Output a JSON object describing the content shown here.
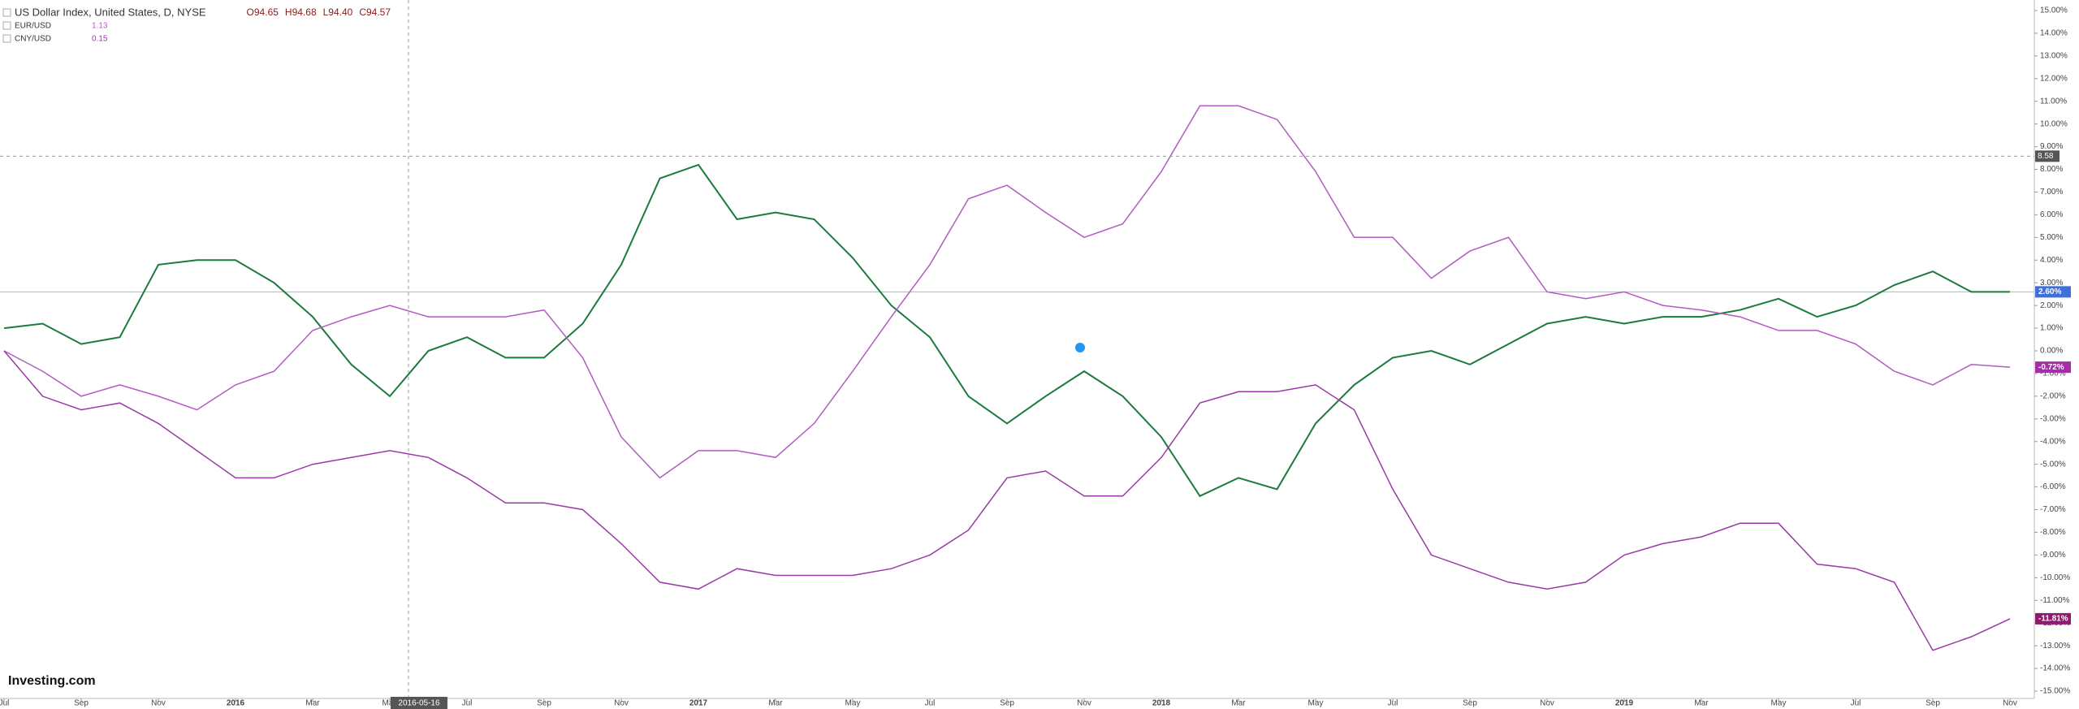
{
  "chart_data": {
    "type": "line",
    "x": [
      "2015-07",
      "2015-08",
      "2015-09",
      "2015-10",
      "2015-11",
      "2015-12",
      "2016-01",
      "2016-02",
      "2016-03",
      "2016-04",
      "2016-05",
      "2016-06",
      "2016-07",
      "2016-08",
      "2016-09",
      "2016-10",
      "2016-11",
      "2016-12",
      "2017-01",
      "2017-02",
      "2017-03",
      "2017-04",
      "2017-05",
      "2017-06",
      "2017-07",
      "2017-08",
      "2017-09",
      "2017-10",
      "2017-11",
      "2017-12",
      "2018-01",
      "2018-02",
      "2018-03",
      "2018-04",
      "2018-05",
      "2018-06",
      "2018-07",
      "2018-08",
      "2018-09",
      "2018-10",
      "2018-11",
      "2018-12",
      "2019-01",
      "2019-02",
      "2019-03",
      "2019-04",
      "2019-05",
      "2019-06",
      "2019-07",
      "2019-08",
      "2019-09",
      "2019-10",
      "2019-11"
    ],
    "xticks": [
      {
        "value": "2015-07",
        "label": "Jul"
      },
      {
        "value": "2015-09",
        "label": "Sep"
      },
      {
        "value": "2015-11",
        "label": "Nov"
      },
      {
        "value": "2016-01",
        "label": "2016"
      },
      {
        "value": "2016-03",
        "label": "Mar"
      },
      {
        "value": "2016-05",
        "label": "May"
      },
      {
        "value": "2016-07",
        "label": "Jul"
      },
      {
        "value": "2016-09",
        "label": "Sep"
      },
      {
        "value": "2016-11",
        "label": "Nov"
      },
      {
        "value": "2017-01",
        "label": "2017"
      },
      {
        "value": "2017-03",
        "label": "Mar"
      },
      {
        "value": "2017-05",
        "label": "May"
      },
      {
        "value": "2017-07",
        "label": "Jul"
      },
      {
        "value": "2017-09",
        "label": "Sep"
      },
      {
        "value": "2017-11",
        "label": "Nov"
      },
      {
        "value": "2018-01",
        "label": "2018"
      },
      {
        "value": "2018-03",
        "label": "Mar"
      },
      {
        "value": "2018-05",
        "label": "May"
      },
      {
        "value": "2018-07",
        "label": "Jul"
      },
      {
        "value": "2018-09",
        "label": "Sep"
      },
      {
        "value": "2018-11",
        "label": "Nov"
      },
      {
        "value": "2019-01",
        "label": "2019"
      },
      {
        "value": "2019-03",
        "label": "Mar"
      },
      {
        "value": "2019-05",
        "label": "May"
      },
      {
        "value": "2019-07",
        "label": "Jul"
      },
      {
        "value": "2019-09",
        "label": "Sep"
      },
      {
        "value": "2019-11",
        "label": "Nov"
      }
    ],
    "ylim": [
      -15,
      15
    ],
    "yticks": [
      {
        "value": 15,
        "label": "15.00%"
      },
      {
        "value": 14,
        "label": "14.00%"
      },
      {
        "value": 13,
        "label": "13.00%"
      },
      {
        "value": 12,
        "label": "12.00%"
      },
      {
        "value": 11,
        "label": "11.00%"
      },
      {
        "value": 10,
        "label": "10.00%"
      },
      {
        "value": 9,
        "label": "9.00%"
      },
      {
        "value": 8,
        "label": "8.00%"
      },
      {
        "value": 7,
        "label": "7.00%"
      },
      {
        "value": 6,
        "label": "6.00%"
      },
      {
        "value": 5,
        "label": "5.00%"
      },
      {
        "value": 4,
        "label": "4.00%"
      },
      {
        "value": 3,
        "label": "3.00%"
      },
      {
        "value": 2,
        "label": "2.00%"
      },
      {
        "value": 1,
        "label": "1.00%"
      },
      {
        "value": 0,
        "label": "0.00%"
      },
      {
        "value": -1,
        "label": "-1.00%"
      },
      {
        "value": -2,
        "label": "-2.00%"
      },
      {
        "value": -3,
        "label": "-3.00%"
      },
      {
        "value": -4,
        "label": "-4.00%"
      },
      {
        "value": -5,
        "label": "-5.00%"
      },
      {
        "value": -6,
        "label": "-6.00%"
      },
      {
        "value": -7,
        "label": "-7.00%"
      },
      {
        "value": -8,
        "label": "-8.00%"
      },
      {
        "value": -9,
        "label": "-9.00%"
      },
      {
        "value": -10,
        "label": "-10.00%"
      },
      {
        "value": -11,
        "label": "-11.00%"
      },
      {
        "value": -12,
        "label": "-12.00%"
      },
      {
        "value": -13,
        "label": "-13.00%"
      },
      {
        "value": -14,
        "label": "-14.00%"
      },
      {
        "value": -15,
        "label": "-15.00%"
      }
    ],
    "series": [
      {
        "name": "US Dollar Index, United States, D, NYSE",
        "color": "#1b7a3e",
        "badge_color": "#3f6fd8",
        "last_label": "2.60%",
        "ohlc": [
          {
            "value": 94.65,
            "label": "O94.65"
          },
          {
            "value": 94.68,
            "label": "H94.68"
          },
          {
            "value": 94.4,
            "label": "L94.40"
          },
          {
            "value": 94.57,
            "label": "C94.57"
          }
        ],
        "values": [
          1,
          1.2,
          0.3,
          0.6,
          3.8,
          4,
          4,
          3,
          1.5,
          -0.6,
          -2,
          0,
          0.6,
          -0.3,
          -0.3,
          1.2,
          3.8,
          7.6,
          8.2,
          5.8,
          6.1,
          5.8,
          4.1,
          2,
          0.6,
          -2,
          -3.2,
          -2,
          -0.9,
          -2,
          -3.8,
          -6.4,
          -5.6,
          -6.1,
          -3.2,
          -1.5,
          -0.3,
          0,
          -0.6,
          0.3,
          1.2,
          1.5,
          1.2,
          1.5,
          1.5,
          1.8,
          2.3,
          1.5,
          2,
          2.9,
          3.5,
          2.6,
          2.6
        ]
      },
      {
        "name": "EUR/USD",
        "color": "#b05cc0",
        "badge_color": "#a62ca8",
        "legend_value": 1.13,
        "last_label": "-0.72%",
        "values": [
          0,
          -0.9,
          -2,
          -1.5,
          -2,
          -2.6,
          -1.5,
          -0.9,
          0.9,
          1.5,
          2,
          1.5,
          1.5,
          1.5,
          1.8,
          -0.3,
          -3.8,
          -5.6,
          -4.4,
          -4.4,
          -4.7,
          -3.2,
          -0.9,
          1.5,
          3.8,
          6.7,
          7.3,
          6.1,
          5,
          5.6,
          7.9,
          10.8,
          10.8,
          10.2,
          7.9,
          5,
          5,
          3.2,
          4.4,
          5,
          2.6,
          2.3,
          2.6,
          2,
          1.8,
          1.5,
          0.9,
          0.9,
          0.3,
          -0.9,
          -1.5,
          -0.6,
          -0.72
        ]
      },
      {
        "name": "CNY/USD",
        "color": "#9a3aa6",
        "badge_color": "#8e1a6e",
        "legend_value": 0.15,
        "last_label": "-11.81%",
        "values": [
          0,
          -2,
          -2.6,
          -2.3,
          -3.2,
          -4.4,
          -5.6,
          -5.6,
          -5,
          -4.7,
          -4.4,
          -4.7,
          -5.6,
          -6.7,
          -6.7,
          -7,
          -8.5,
          -10.2,
          -10.5,
          -9.6,
          -9.9,
          -9.9,
          -9.9,
          -9.6,
          -9,
          -7.9,
          -5.6,
          -5.3,
          -6.4,
          -6.4,
          -4.7,
          -2.3,
          -1.8,
          -1.8,
          -1.5,
          -2.6,
          -6.1,
          -9,
          -9.6,
          -10.2,
          -10.5,
          -10.2,
          -9,
          -8.5,
          -8.2,
          -7.6,
          -7.6,
          -9.4,
          -9.6,
          -10.2,
          -13.2,
          -12.6,
          -11.81
        ]
      }
    ],
    "crosshair": {
      "value": 8.58,
      "date": "2016-05-16"
    },
    "logo": "Investing.com"
  }
}
